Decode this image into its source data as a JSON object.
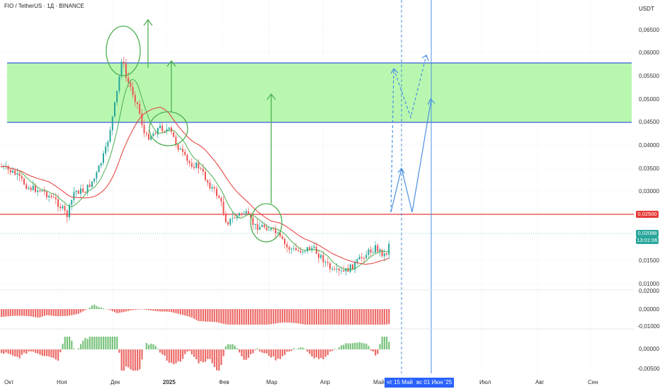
{
  "header": {
    "title": "FIO / TetherUS · 1Д · BINANCE",
    "currency": "USDT"
  },
  "price_axis": {
    "labels": [
      "0,06500",
      "0,06000",
      "0,05500",
      "0,05000",
      "0,04500",
      "0,04000",
      "0,03500",
      "0,03000",
      "0,02500",
      "0,01500",
      "0,01000"
    ],
    "current_price": "0,02088",
    "countdown": "13:01:06",
    "level_price": "0,02500"
  },
  "osc1_axis": {
    "labels": [
      "0,02000",
      "0,00000",
      "-0,01000"
    ]
  },
  "osc2_axis": {
    "labels": [
      "0,00000",
      "-0,00500"
    ]
  },
  "time_axis": {
    "labels": [
      "Окт",
      "Ноя",
      "Дек",
      "2025",
      "Фев",
      "Мар",
      "Апр",
      "Май",
      "Июл",
      "Авг",
      "Сен"
    ],
    "badge_1": "чт 15 Май '25",
    "badge_2": "вс 01 Июн '25"
  },
  "colors": {
    "up": "#26a69a",
    "down": "#ef5350",
    "zone": "#b9f7b0",
    "zone_border": "#3b5bdb",
    "level": "#e53935",
    "projection": "#4a90e2",
    "annotation": "#4caf50"
  }
}
